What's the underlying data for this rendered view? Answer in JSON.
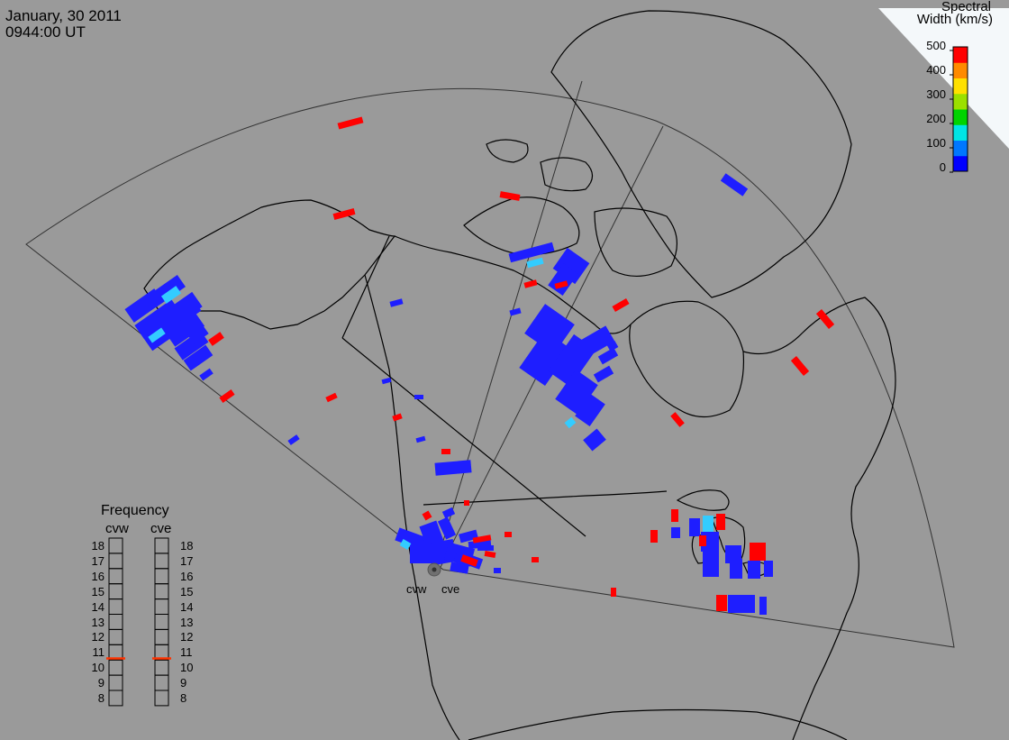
{
  "header": {
    "date": "January, 30 2011",
    "time": "0944:00 UT"
  },
  "colorbar": {
    "title_line1": "Spectral",
    "title_line2": "Width (km/s)",
    "ticks": [
      "500",
      "400",
      "300",
      "200",
      "100",
      "0"
    ],
    "colors": [
      "#0000ff",
      "#0077ff",
      "#00e5e5",
      "#00d400",
      "#9be000",
      "#ffe000",
      "#ff8a00",
      "#ff0000"
    ]
  },
  "frequency": {
    "title": "Frequency",
    "radar_left": "cvw",
    "radar_right": "cve",
    "numbers": [
      "18",
      "17",
      "16",
      "15",
      "14",
      "13",
      "12",
      "11",
      "10",
      "9",
      "8"
    ],
    "current_mhz_left": 10.6,
    "current_mhz_right": 10.6,
    "marker_color": "#ff3300"
  },
  "radars": {
    "west_label": "cvw",
    "east_label": "cve"
  },
  "colors": {
    "background": "#9a9a9a",
    "low_width": "#1e1eff",
    "mid_width": "#33ccff",
    "high_width": "#ff0000",
    "coastline": "#000000"
  }
}
